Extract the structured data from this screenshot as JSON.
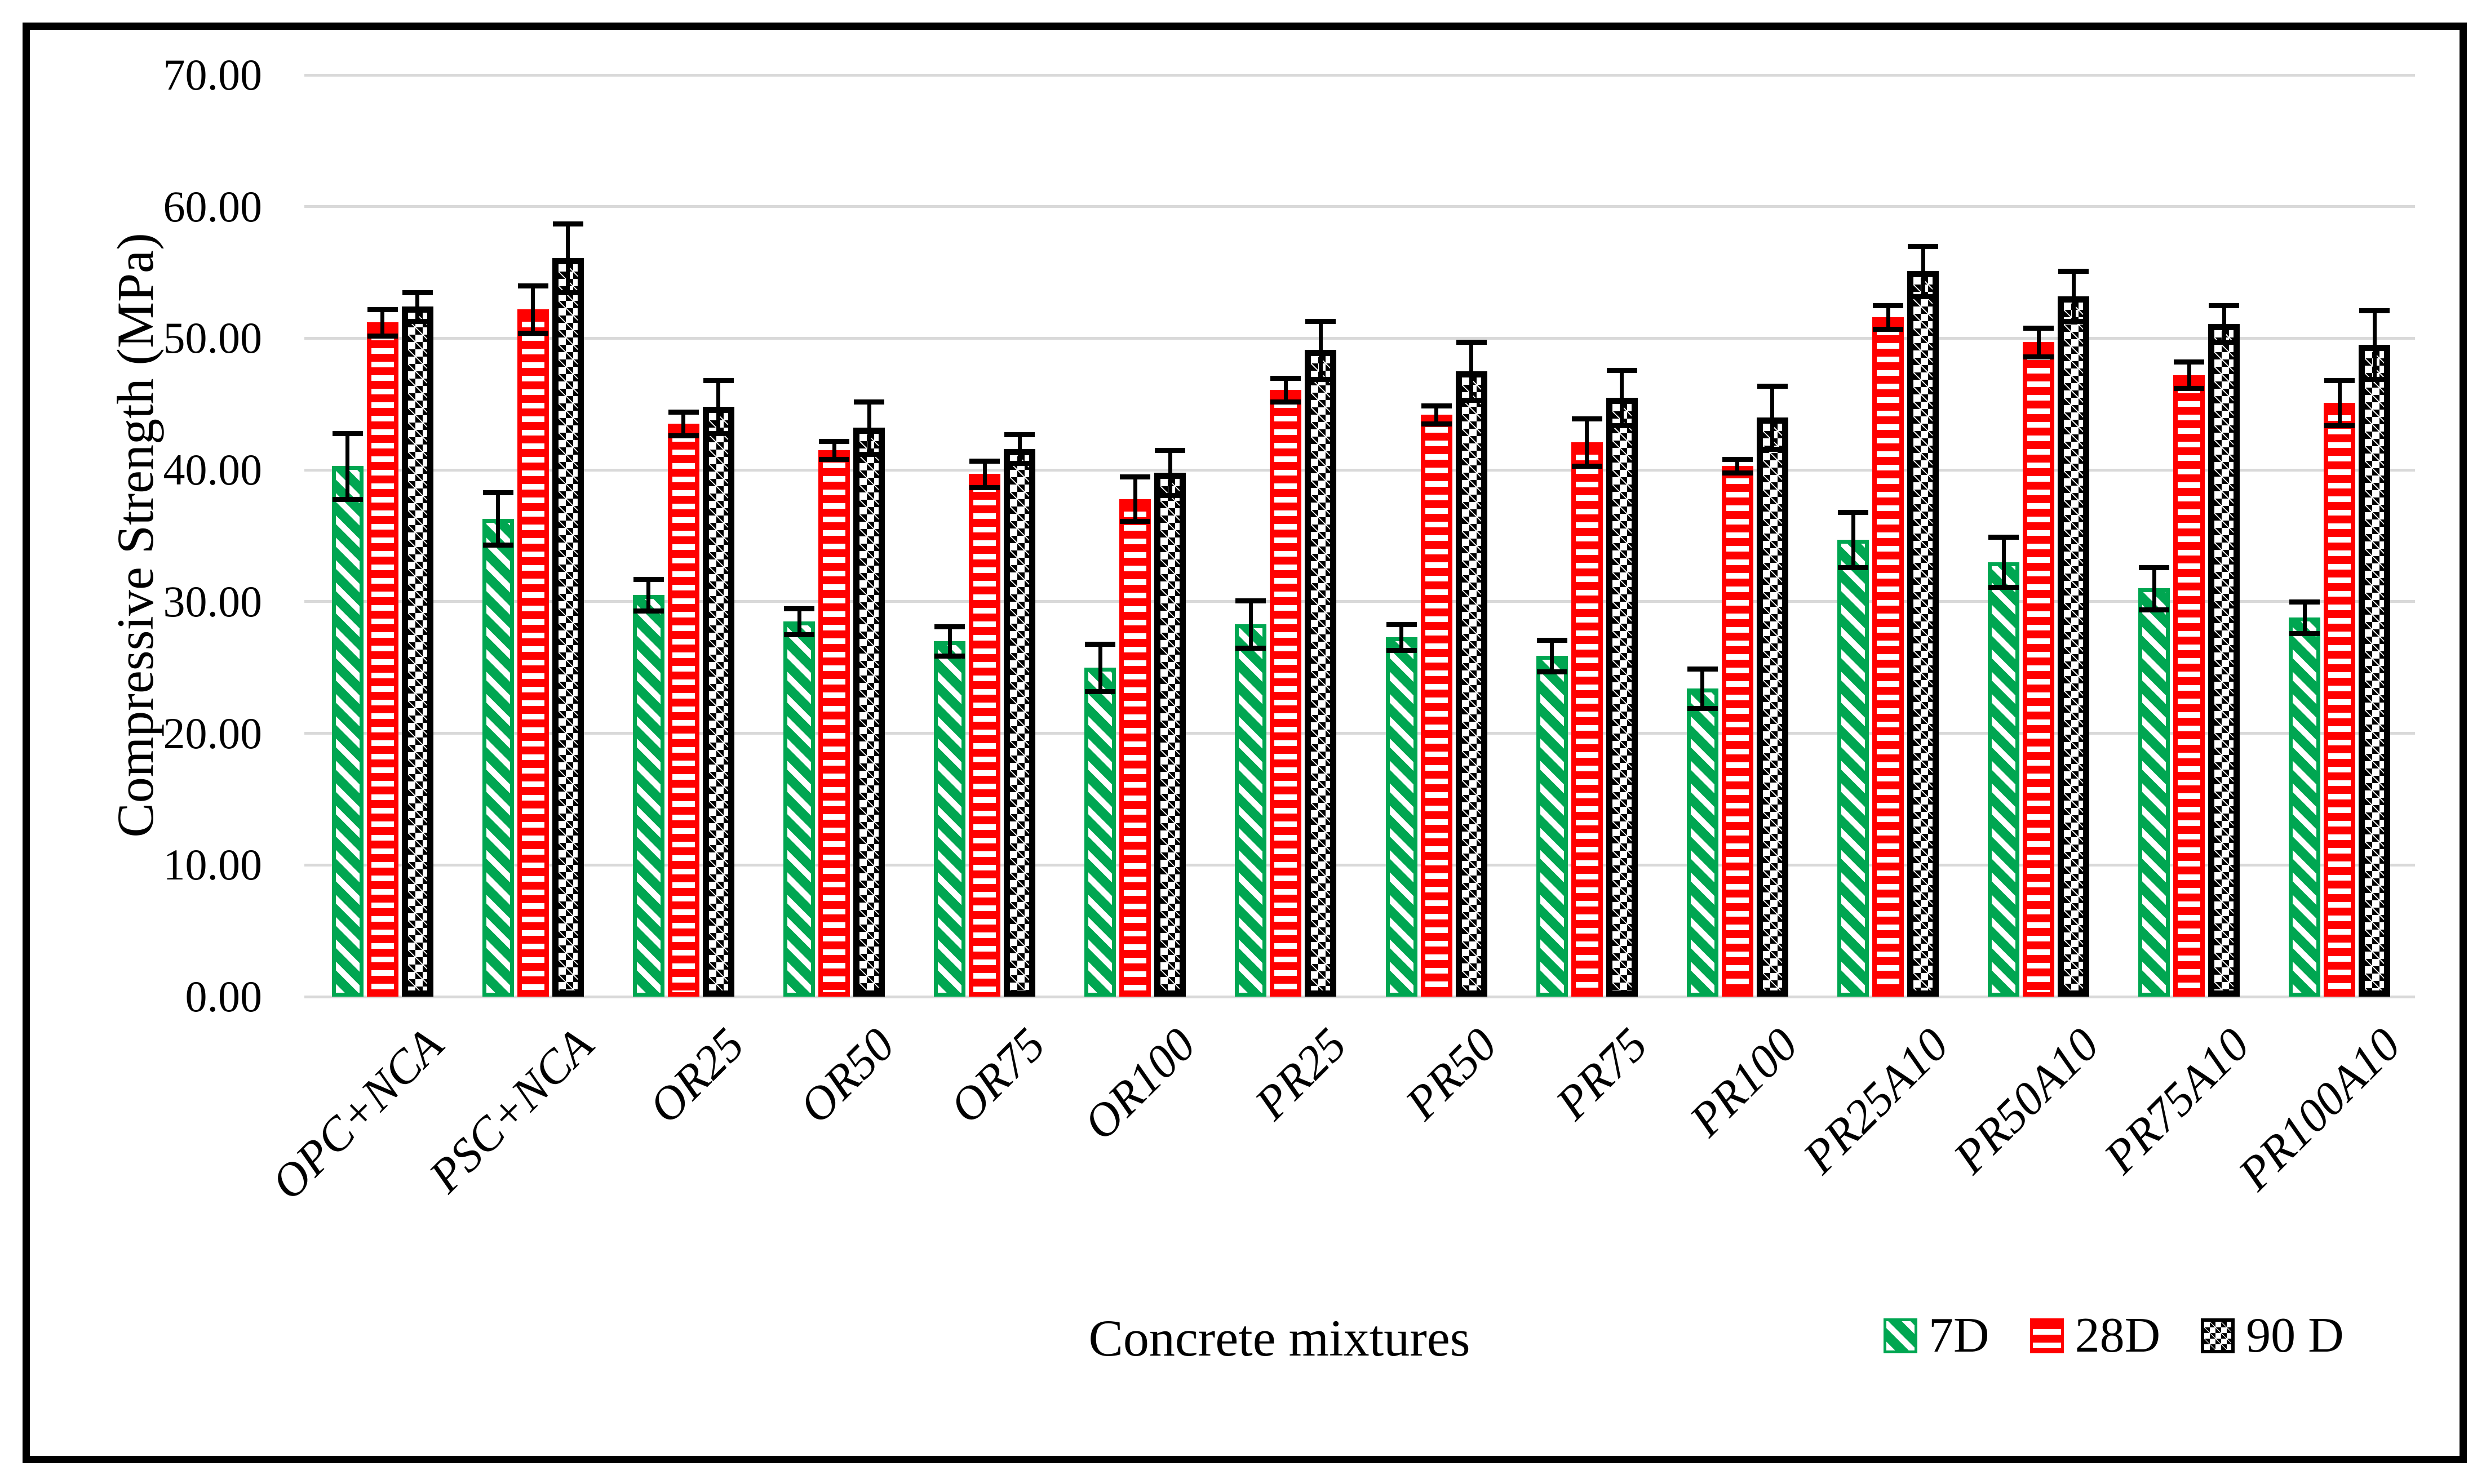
{
  "figure": {
    "background": "#ffffff",
    "border_color": "#000000"
  },
  "chart_data": {
    "type": "bar",
    "title": "",
    "xlabel": "Concrete mixtures",
    "ylabel": "Compressive Strength (MPa)",
    "ylim": [
      0,
      70
    ],
    "ytick_step": 10,
    "yticklabels": [
      "0.00",
      "10.00",
      "20.00",
      "30.00",
      "40.00",
      "50.00",
      "60.00",
      "70.00"
    ],
    "grid": true,
    "gridline_color": "#d9d9d9",
    "legend_position": "bottom-right",
    "error_bars": true,
    "categories": [
      "OPC+NCA",
      "PSC+NCA",
      "OR25",
      "OR50",
      "OR75",
      "OR100",
      "PR25",
      "PR50",
      "PR75",
      "PR100",
      "PR25A10",
      "PR50A10",
      "PR75A10",
      "PR100A10"
    ],
    "series": [
      {
        "name": "7D",
        "color": "#00A651",
        "pattern": "diagonal-stripes",
        "values": [
          40.3,
          36.3,
          30.5,
          28.5,
          27.0,
          25.0,
          28.3,
          27.3,
          25.9,
          23.4,
          34.7,
          33.0,
          31.0,
          28.8
        ],
        "errors": [
          2.5,
          2.0,
          1.2,
          1.0,
          1.1,
          1.8,
          1.8,
          1.0,
          1.2,
          1.5,
          2.1,
          1.9,
          1.6,
          1.2
        ]
      },
      {
        "name": "28D",
        "color": "#FF0000",
        "pattern": "horizontal-stripes",
        "values": [
          51.2,
          52.2,
          43.5,
          41.5,
          39.7,
          37.8,
          46.1,
          44.2,
          42.1,
          40.3,
          51.6,
          49.7,
          47.2,
          45.1
        ],
        "errors": [
          1.0,
          1.8,
          0.9,
          0.7,
          1.0,
          1.7,
          0.9,
          0.7,
          1.8,
          0.5,
          0.9,
          1.1,
          1.0,
          1.7
        ]
      },
      {
        "name": "90 D",
        "color": "#000000",
        "pattern": "checker-dots",
        "values": [
          52.4,
          56.1,
          44.8,
          43.2,
          41.6,
          39.8,
          49.1,
          47.5,
          45.5,
          44.0,
          55.1,
          53.2,
          51.1,
          49.5
        ],
        "errors": [
          1.1,
          2.6,
          2.0,
          2.0,
          1.1,
          1.7,
          2.2,
          2.2,
          2.1,
          2.4,
          1.9,
          1.9,
          1.4,
          2.6
        ]
      }
    ]
  }
}
